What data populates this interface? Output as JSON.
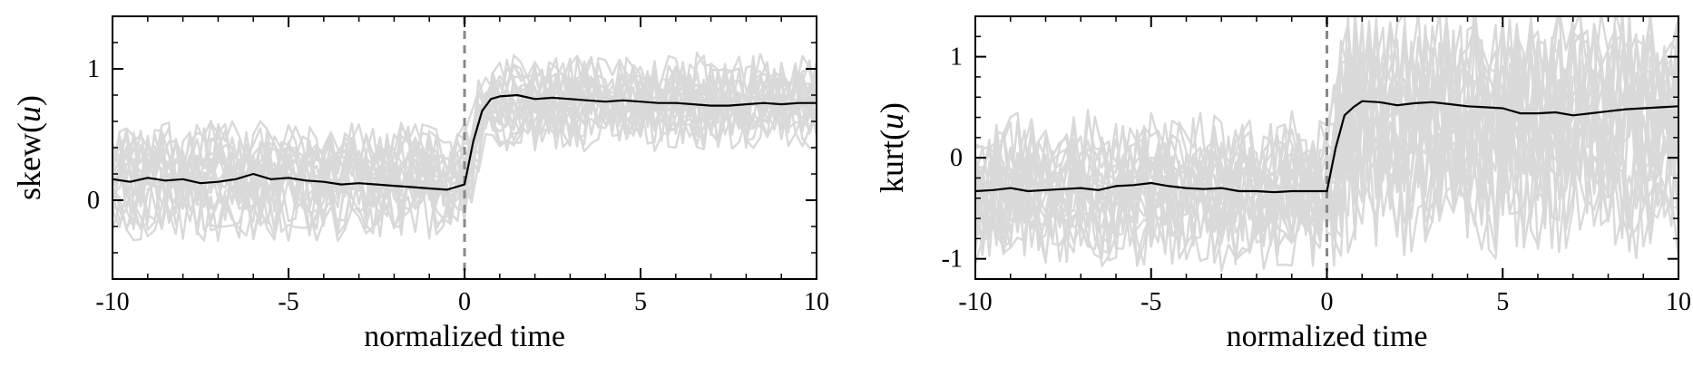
{
  "chart_data": [
    {
      "type": "line",
      "xlabel": "normalized time",
      "ylabel_prefix": "skew(",
      "ylabel_var": "u",
      "ylabel_suffix": ")",
      "xlim": [
        -10,
        10
      ],
      "ylim": [
        -0.6,
        1.4
      ],
      "xticks": [
        -10,
        -5,
        0,
        5,
        10
      ],
      "xticklabels": [
        "-10",
        "-5",
        "0",
        "5",
        "10"
      ],
      "yticks": [
        0,
        1
      ],
      "yticklabels": [
        "0",
        "1"
      ],
      "grid": false,
      "marker_line": {
        "x": 0,
        "style": "dashed",
        "color": "#888888"
      },
      "colors": {
        "mean": "#000000",
        "individual": "#d9d9d9"
      },
      "mean_series": {
        "x": [
          -10,
          -9.5,
          -9,
          -8.5,
          -8,
          -7.5,
          -7,
          -6.5,
          -6,
          -5.5,
          -5,
          -4.5,
          -4,
          -3.5,
          -3,
          -2.5,
          -2,
          -1.5,
          -1,
          -0.5,
          0,
          0.25,
          0.5,
          0.75,
          1,
          1.5,
          2,
          2.5,
          3,
          3.5,
          4,
          4.5,
          5,
          5.5,
          6,
          6.5,
          7,
          7.5,
          8,
          8.5,
          9,
          9.5,
          10
        ],
        "y": [
          0.16,
          0.14,
          0.17,
          0.15,
          0.16,
          0.13,
          0.14,
          0.16,
          0.2,
          0.16,
          0.17,
          0.15,
          0.14,
          0.12,
          0.13,
          0.12,
          0.11,
          0.1,
          0.09,
          0.08,
          0.12,
          0.45,
          0.68,
          0.77,
          0.79,
          0.8,
          0.77,
          0.78,
          0.77,
          0.76,
          0.75,
          0.76,
          0.75,
          0.74,
          0.74,
          0.73,
          0.72,
          0.72,
          0.73,
          0.74,
          0.73,
          0.74,
          0.74
        ]
      },
      "individual_series_count": 22,
      "individual_series_style": {
        "pre": {
          "mean": 0.15,
          "amplitude": 0.42
        },
        "post": {
          "mean": 0.75,
          "amplitude": 0.38
        }
      }
    },
    {
      "type": "line",
      "xlabel": "normalized time",
      "ylabel_prefix": "kurt(",
      "ylabel_var": "u",
      "ylabel_suffix": ")",
      "xlim": [
        -10,
        10
      ],
      "ylim": [
        -1.2,
        1.4
      ],
      "xticks": [
        -10,
        -5,
        0,
        5,
        10
      ],
      "xticklabels": [
        "-10",
        "-5",
        "0",
        "5",
        "10"
      ],
      "yticks": [
        -1,
        0,
        1
      ],
      "yticklabels": [
        "-1",
        "0",
        "1"
      ],
      "grid": false,
      "marker_line": {
        "x": 0,
        "style": "dashed",
        "color": "#888888"
      },
      "colors": {
        "mean": "#000000",
        "individual": "#d9d9d9"
      },
      "mean_series": {
        "x": [
          -10,
          -9.5,
          -9,
          -8.5,
          -8,
          -7.5,
          -7,
          -6.5,
          -6,
          -5.5,
          -5,
          -4.5,
          -4,
          -3.5,
          -3,
          -2.5,
          -2,
          -1.5,
          -1,
          -0.5,
          0,
          0.25,
          0.5,
          0.75,
          1,
          1.5,
          2,
          2.5,
          3,
          3.5,
          4,
          4.5,
          5,
          5.5,
          6,
          6.5,
          7,
          7.5,
          8,
          8.5,
          9,
          9.5,
          10
        ],
        "y": [
          -0.33,
          -0.32,
          -0.3,
          -0.33,
          -0.32,
          -0.31,
          -0.3,
          -0.32,
          -0.28,
          -0.27,
          -0.25,
          -0.28,
          -0.3,
          -0.31,
          -0.3,
          -0.33,
          -0.33,
          -0.34,
          -0.33,
          -0.33,
          -0.33,
          0.1,
          0.42,
          0.5,
          0.56,
          0.55,
          0.52,
          0.54,
          0.55,
          0.53,
          0.51,
          0.5,
          0.49,
          0.44,
          0.44,
          0.45,
          0.42,
          0.44,
          0.46,
          0.48,
          0.49,
          0.5,
          0.51
        ]
      },
      "individual_series_count": 22,
      "individual_series_style": {
        "pre": {
          "mean": -0.35,
          "amplitude": 0.75
        },
        "post": {
          "mean": 0.3,
          "amplitude": 1.3
        }
      }
    }
  ]
}
